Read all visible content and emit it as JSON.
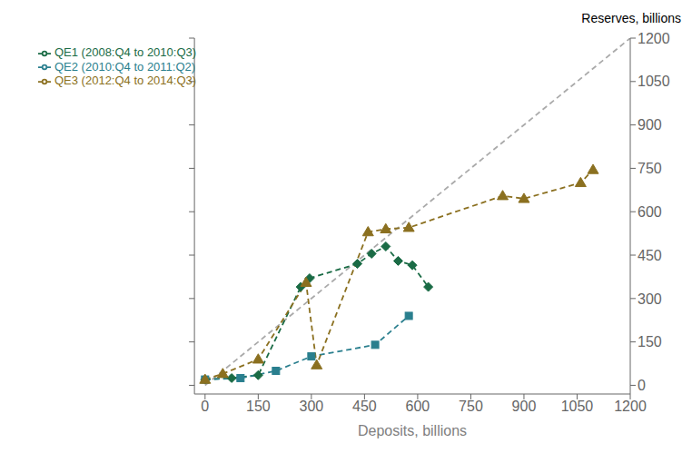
{
  "chart_data": {
    "type": "line",
    "xlabel": "Deposits, billions",
    "ylabel": "Reserves, billions",
    "xlim": [
      -30,
      1200
    ],
    "ylim": [
      -30,
      1200
    ],
    "xticks": [
      0,
      150,
      300,
      450,
      600,
      750,
      900,
      1050,
      1200
    ],
    "yticks": [
      0,
      150,
      300,
      450,
      600,
      750,
      900,
      1050,
      1200
    ],
    "grid": false,
    "legend": "upper left",
    "series": [
      {
        "x": [
          0,
          1200
        ],
        "values": [
          0,
          1200
        ],
        "color": "#aaaaaa",
        "line_style": "dashed"
      },
      {
        "name": "QE1 (2008:Q4 to 2010:Q3)",
        "x": [
          0,
          75,
          150,
          270,
          295,
          430,
          470,
          510,
          545,
          585,
          630
        ],
        "values": [
          20,
          25,
          35,
          340,
          370,
          420,
          455,
          480,
          430,
          415,
          340
        ],
        "color": "#1a6b45",
        "marker": "diamond",
        "line_style": "dashed"
      },
      {
        "name": "QE2 (2010:Q4 to 2011:Q2)",
        "x": [
          0,
          100,
          200,
          300,
          480,
          575
        ],
        "values": [
          20,
          25,
          50,
          100,
          140,
          240
        ],
        "color": "#2a7f8e",
        "marker": "square",
        "line_style": "dashed"
      },
      {
        "name": "QE3 (2012:Q4 to 2014:Q3)",
        "x": [
          0,
          50,
          150,
          285,
          315,
          460,
          510,
          575,
          840,
          900,
          1060,
          1095
        ],
        "values": [
          20,
          40,
          90,
          355,
          70,
          530,
          540,
          545,
          655,
          645,
          700,
          745
        ],
        "color": "#8b7020",
        "marker": "triangle",
        "line_style": "dashed"
      }
    ]
  }
}
